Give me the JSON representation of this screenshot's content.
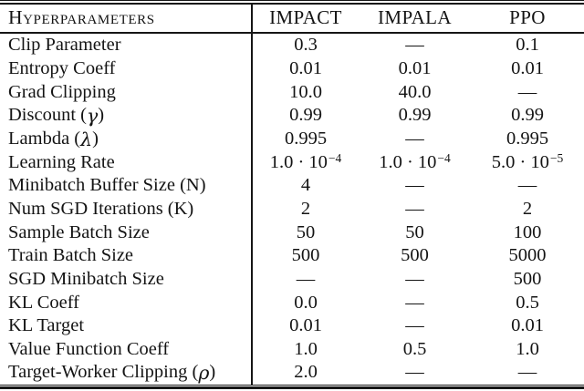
{
  "table": {
    "header": {
      "row_label_column": "Hyperparameters",
      "columns": [
        "IMPACT",
        "IMPALA",
        "PPO"
      ]
    },
    "rows": [
      {
        "pre": "Clip Parameter",
        "v": [
          "0.3",
          "—",
          "0.1"
        ]
      },
      {
        "pre": "Entropy Coeff",
        "v": [
          "0.01",
          "0.01",
          "0.01"
        ]
      },
      {
        "pre": "Grad Clipping",
        "v": [
          "10.0",
          "40.0",
          "—"
        ]
      },
      {
        "pre": "Discount (",
        "sym": "γ",
        "post": ")",
        "v": [
          "0.99",
          "0.99",
          "0.99"
        ]
      },
      {
        "pre": "Lambda (",
        "sym": "λ",
        "post": ")",
        "v": [
          "0.995",
          "—",
          "0.995"
        ]
      },
      {
        "pre": "Learning Rate",
        "v_rich": [
          {
            "b": "1.0 · 10",
            "e": "−4"
          },
          {
            "b": "1.0 · 10",
            "e": "−4"
          },
          {
            "b": "5.0 · 10",
            "e": "−5"
          }
        ]
      },
      {
        "pre": "Minibatch Buffer Size (N)",
        "v": [
          "4",
          "—",
          "—"
        ]
      },
      {
        "pre": "Num SGD Iterations (K)",
        "v": [
          "2",
          "—",
          "2"
        ]
      },
      {
        "pre": "Sample Batch Size",
        "v": [
          "50",
          "50",
          "100"
        ]
      },
      {
        "pre": "Train Batch Size",
        "v": [
          "500",
          "500",
          "5000"
        ]
      },
      {
        "pre": "SGD Minibatch Size",
        "v": [
          "—",
          "—",
          "500"
        ]
      },
      {
        "pre": "KL Coeff",
        "v": [
          "0.0",
          "—",
          "0.5"
        ]
      },
      {
        "pre": "KL Target",
        "v": [
          "0.01",
          "—",
          "0.01"
        ]
      },
      {
        "pre": "Value Function Coeff",
        "v": [
          "1.0",
          "0.5",
          "1.0"
        ]
      },
      {
        "pre": "Target-Worker Clipping (",
        "sym": "ρ",
        "post": ")",
        "v": [
          "2.0",
          "—",
          "—"
        ]
      }
    ],
    "colors": {
      "text": "#141414",
      "rule": "#161616",
      "background": "#ffffff"
    }
  }
}
